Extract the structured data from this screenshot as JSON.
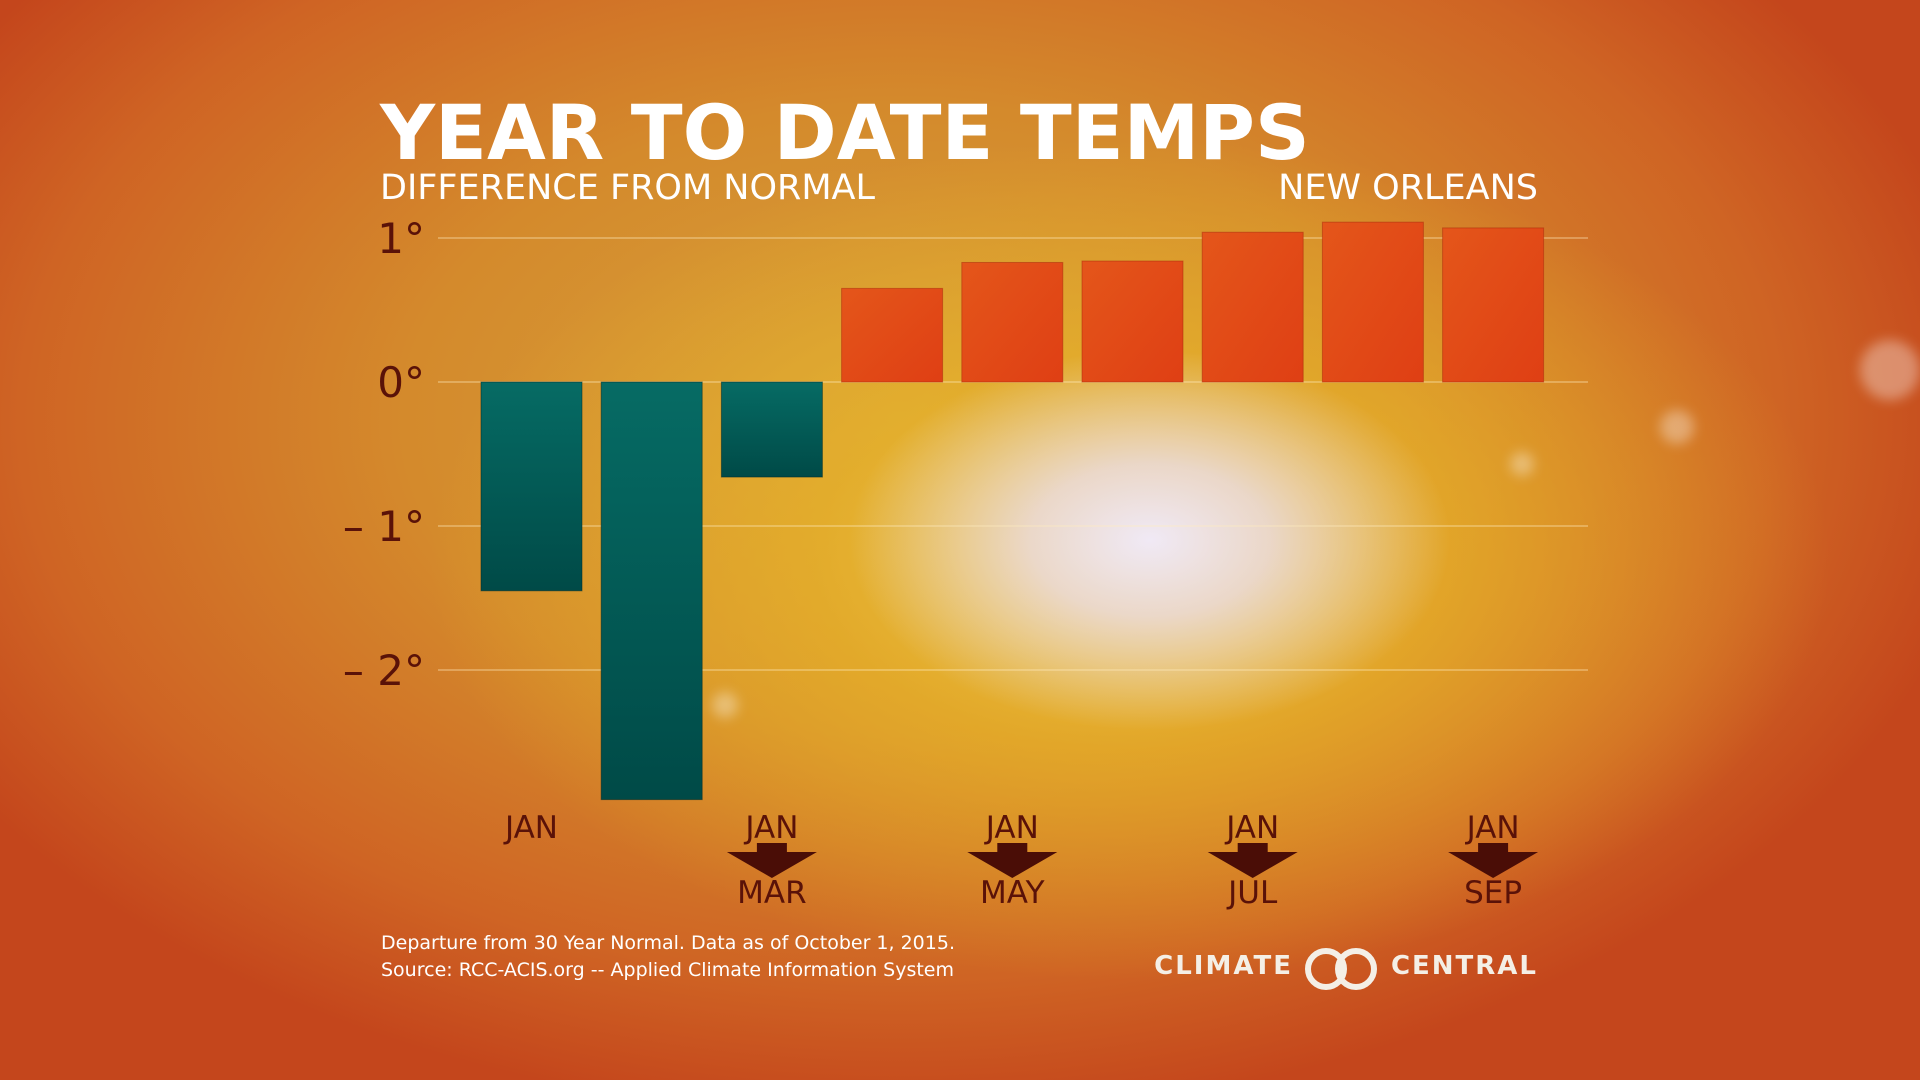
{
  "title": "YEAR TO DATE TEMPS",
  "subtitle": "DIFFERENCE FROM NORMAL",
  "location": "NEW ORLEANS",
  "footnote": {
    "line1": "Departure from 30 Year Normal. Data as of October 1, 2015.",
    "line2": "Source: RCC-ACIS.org -- Applied Climate Information System"
  },
  "logo": {
    "left_word": "CLIMATE",
    "right_word": "CENTRAL",
    "icon": "interlocking-rings-icon"
  },
  "colors": {
    "negative": "#005a55",
    "positive": "#e35119",
    "text": "#ffffff",
    "tick_text": "#5a1208"
  },
  "chart_data": {
    "type": "bar",
    "title": "YEAR TO DATE TEMPS",
    "subtitle": "DIFFERENCE FROM NORMAL",
    "ylim": [
      -2.9,
      1.1
    ],
    "yticks": [
      {
        "value": 1,
        "label": "1°"
      },
      {
        "value": 0,
        "label": "0°"
      },
      {
        "value": -1,
        "label": "– 1°"
      },
      {
        "value": -2,
        "label": "– 2°"
      }
    ],
    "grid": true,
    "values": [
      -1.45,
      -2.9,
      -0.66,
      0.65,
      0.83,
      0.84,
      1.04,
      1.11,
      1.07
    ],
    "category_labels": [
      {
        "index": 0,
        "top": "JAN",
        "bottom": "",
        "arrow": false
      },
      {
        "index": 2,
        "top": "JAN",
        "bottom": "MAR",
        "arrow": true
      },
      {
        "index": 4,
        "top": "JAN",
        "bottom": "MAY",
        "arrow": true
      },
      {
        "index": 6,
        "top": "JAN",
        "bottom": "JUL",
        "arrow": true
      },
      {
        "index": 8,
        "top": "JAN",
        "bottom": "SEP",
        "arrow": true
      }
    ]
  }
}
